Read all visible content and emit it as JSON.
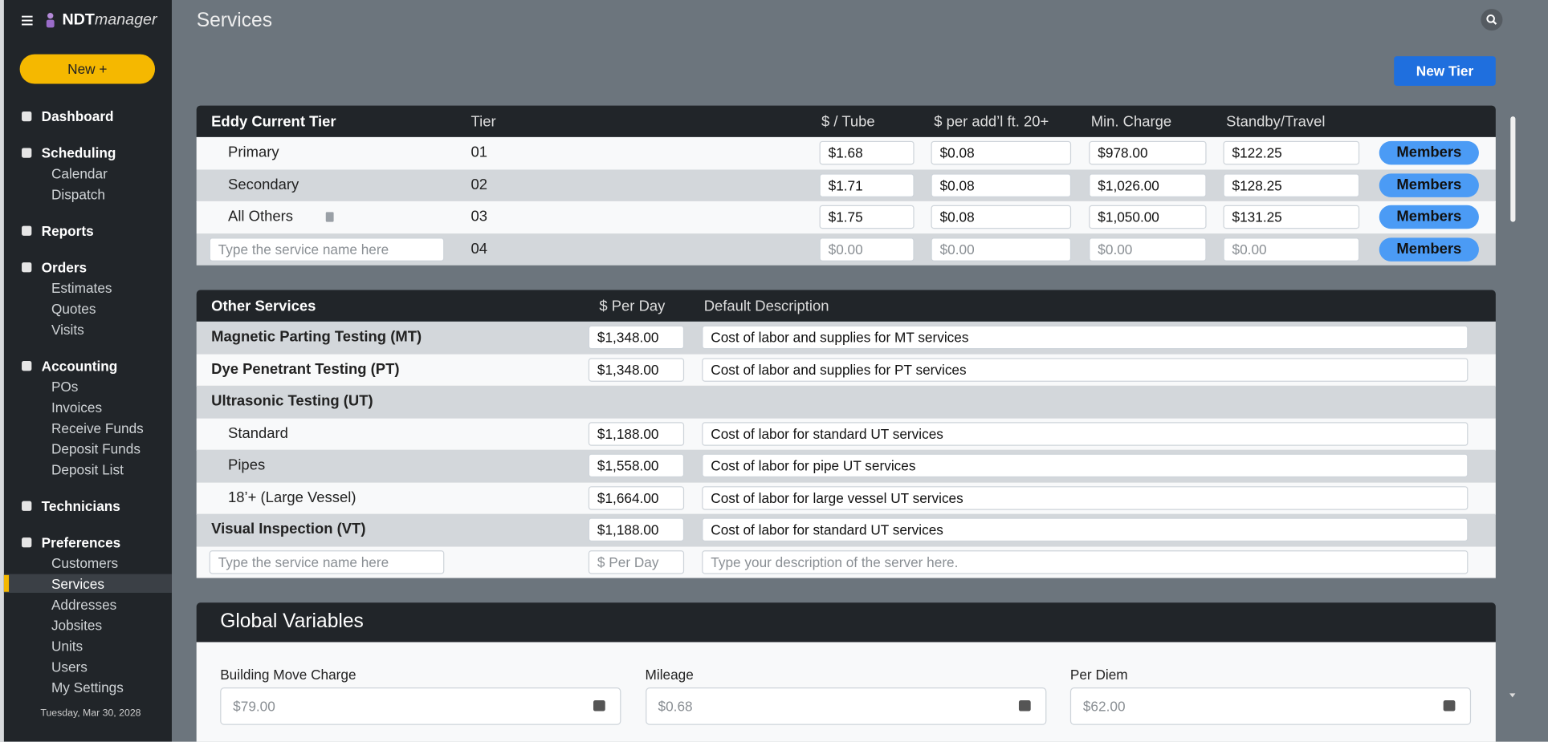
{
  "sidebar": {
    "logo_bold": "NDT",
    "logo_italic": "manager",
    "new_button": "New +",
    "nav": [
      {
        "label": "Dashboard",
        "items": []
      },
      {
        "label": "Scheduling",
        "items": [
          "Calendar",
          "Dispatch"
        ]
      },
      {
        "label": "Reports",
        "items": []
      },
      {
        "label": "Orders",
        "items": [
          "Estimates",
          "Quotes",
          "Visits"
        ]
      },
      {
        "label": "Accounting",
        "items": [
          "POs",
          "Invoices",
          "Receive Funds",
          "Deposit Funds",
          "Deposit List"
        ]
      },
      {
        "label": "Technicians",
        "items": []
      },
      {
        "label": "Preferences",
        "items": [
          "Customers",
          "Services",
          "Addresses",
          "Jobsites",
          "Units",
          "Users",
          "My Settings"
        ]
      }
    ],
    "date": "Tuesday, Mar 30, 2028"
  },
  "header": {
    "title": "Services"
  },
  "new_tier_button": "New Tier",
  "tier_table": {
    "columns": [
      "Eddy Current Tier",
      "Tier",
      "$ / Tube",
      "$ per add’l ft. 20+",
      "Min. Charge",
      "Standby/Travel"
    ],
    "rows": [
      [
        "Primary",
        "01",
        "$1.68",
        "$0.08",
        "$978.00",
        "$122.25"
      ],
      [
        "Secondary",
        "02",
        "$1.71",
        "$0.08",
        "$1,026.00",
        "$128.25"
      ],
      [
        "All Others",
        "03",
        "$1.75",
        "$0.08",
        "$1,050.00",
        "$131.25"
      ]
    ],
    "new_row": {
      "name_placeholder": "Type the service name here",
      "tier": "04",
      "placeholders": [
        "$0.00",
        "$0.00",
        "$0.00",
        "$0.00"
      ]
    },
    "members_button": "Members"
  },
  "services_table": {
    "columns": [
      "Other Services",
      "$ Per Day",
      "Default Description"
    ],
    "rows": [
      {
        "name": "Magnetic Parting Testing (MT)",
        "price": "$1,348.00",
        "description": "Cost of labor and supplies for MT services"
      },
      {
        "name": "Dye Penetrant Testing (PT)",
        "price": "$1,348.00",
        "description": "Cost of labor and supplies for PT services"
      },
      {
        "name": "Ultrasonic Testing (UT)",
        "subrows": [
          {
            "name": "Standard",
            "price": "$1,188.00",
            "description": "Cost of labor for standard UT services"
          },
          {
            "name": "Pipes",
            "price": "$1,558.00",
            "description": "Cost of labor for pipe UT services"
          },
          {
            "name": "18’+ (Large Vessel)",
            "price": "$1,664.00",
            "description": "Cost of labor for large vessel UT services"
          }
        ]
      },
      {
        "name": "Visual Inspection (VT)",
        "price": "$1,188.00",
        "description": "Cost of labor for standard UT services"
      }
    ],
    "new_row": {
      "name_placeholder": "Type the service name here",
      "price_placeholder": "$ Per Day",
      "description_placeholder": "Type your description of the server here."
    }
  },
  "global_variables": {
    "title": "Global Variables",
    "fields": [
      {
        "label": "Building Move Charge",
        "value": "$79.00"
      },
      {
        "label": "Mileage",
        "value": "$0.68"
      },
      {
        "label": "Per Diem",
        "value": "$62.00"
      }
    ]
  }
}
